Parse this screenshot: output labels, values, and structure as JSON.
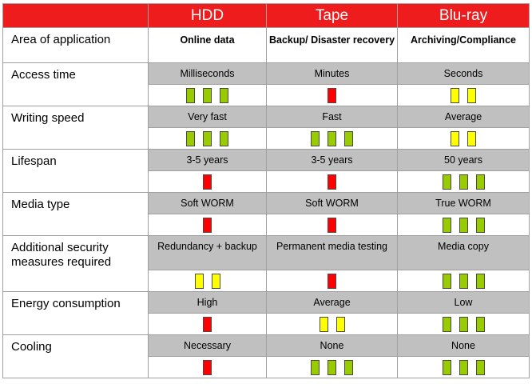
{
  "headers": [
    "HDD",
    "Tape",
    "Blu-ray"
  ],
  "first_row": {
    "label": "Area of application",
    "values": [
      "Online data",
      "Backup/ Disaster recovery",
      "Archiving/Compliance"
    ]
  },
  "rows": [
    {
      "label": "Access time",
      "values": [
        "Milliseconds",
        "Minutes",
        "Seconds"
      ],
      "indicators": [
        {
          "color": "green",
          "count": 3
        },
        {
          "color": "red",
          "count": 1
        },
        {
          "color": "yellow",
          "count": 2
        }
      ]
    },
    {
      "label": "Writing speed",
      "values": [
        "Very fast",
        "Fast",
        "Average"
      ],
      "indicators": [
        {
          "color": "green",
          "count": 3
        },
        {
          "color": "green",
          "count": 3
        },
        {
          "color": "yellow",
          "count": 2
        }
      ]
    },
    {
      "label": "Lifespan",
      "values": [
        "3-5 years",
        "3-5 years",
        "50 years"
      ],
      "indicators": [
        {
          "color": "red",
          "count": 1
        },
        {
          "color": "red",
          "count": 1
        },
        {
          "color": "green",
          "count": 3
        }
      ]
    },
    {
      "label": "Media type",
      "values": [
        "Soft WORM",
        "Soft WORM",
        "True WORM"
      ],
      "indicators": [
        {
          "color": "red",
          "count": 1
        },
        {
          "color": "red",
          "count": 1
        },
        {
          "color": "green",
          "count": 3
        }
      ]
    },
    {
      "label": "Additional security measures required",
      "values": [
        "Redundancy + backup",
        "Permanent media testing",
        "Media copy"
      ],
      "indicators": [
        {
          "color": "yellow",
          "count": 2
        },
        {
          "color": "red",
          "count": 1
        },
        {
          "color": "green",
          "count": 3
        }
      ]
    },
    {
      "label": "Energy consumption",
      "values": [
        "High",
        "Average",
        "Low"
      ],
      "indicators": [
        {
          "color": "red",
          "count": 1
        },
        {
          "color": "yellow",
          "count": 2
        },
        {
          "color": "green",
          "count": 3
        }
      ]
    },
    {
      "label": "Cooling",
      "values": [
        "Necessary",
        "None",
        "None"
      ],
      "indicators": [
        {
          "color": "red",
          "count": 1
        },
        {
          "color": "green",
          "count": 3
        },
        {
          "color": "green",
          "count": 3
        }
      ]
    }
  ],
  "colors": {
    "header": "#ee1c1c",
    "value_band": "#c0c0c0",
    "green": "#99cc00",
    "yellow": "#ffff00",
    "red": "#ff0000"
  }
}
